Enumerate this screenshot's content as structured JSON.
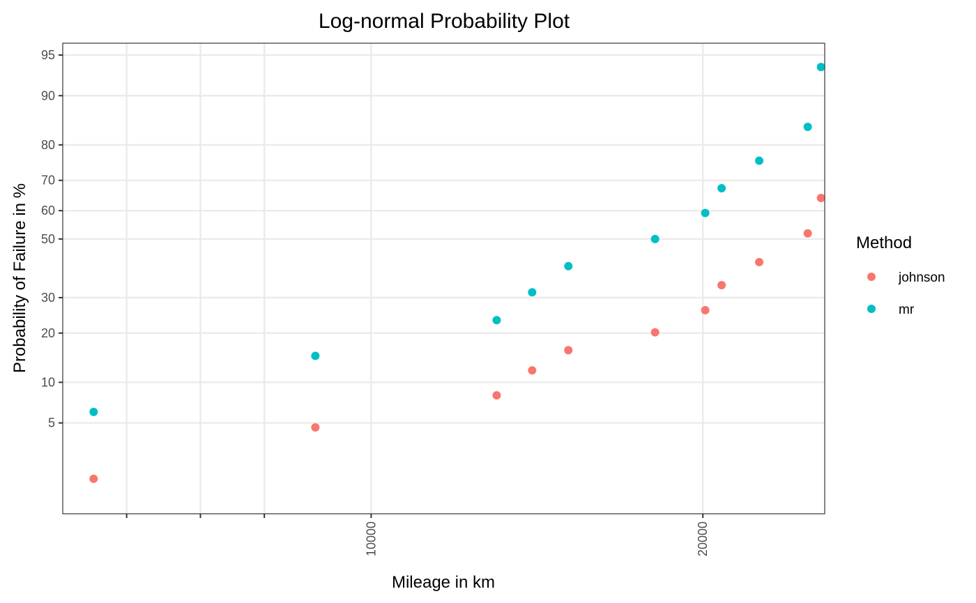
{
  "chart_data": {
    "type": "scatter",
    "title": "Log-normal Probability Plot",
    "xlabel": "Mileage in km",
    "ylabel": "Probability of Failure in %",
    "x_scale": "log",
    "y_scale": "probit",
    "xlim": [
      5250,
      25800
    ],
    "ylim": [
      0.7,
      96
    ],
    "x_ticks": [
      10000,
      20000
    ],
    "x_minor_ticks": [
      6000,
      7000,
      8000
    ],
    "y_ticks": [
      5,
      10,
      20,
      30,
      50,
      60,
      70,
      80,
      90,
      95
    ],
    "grid": true,
    "legend": {
      "title": "Method",
      "position": "right"
    },
    "series": [
      {
        "name": "johnson",
        "color": "#F8766D",
        "x": [
          5600,
          8900,
          13000,
          14000,
          15100,
          18100,
          20100,
          20800,
          22500,
          24900,
          25600
        ],
        "y": [
          1.6,
          4.6,
          8.1,
          12.0,
          16.0,
          20.2,
          26.2,
          34.0,
          41.8,
          52.0,
          64.3
        ]
      },
      {
        "name": "mr",
        "color": "#00BFC4",
        "x": [
          5600,
          8900,
          13000,
          14000,
          15100,
          18100,
          20100,
          20800,
          22500,
          24900,
          25600
        ],
        "y": [
          6.1,
          14.8,
          23.4,
          31.7,
          40.4,
          50.0,
          59.2,
          67.5,
          75.8,
          84.2,
          93.8
        ]
      }
    ]
  }
}
